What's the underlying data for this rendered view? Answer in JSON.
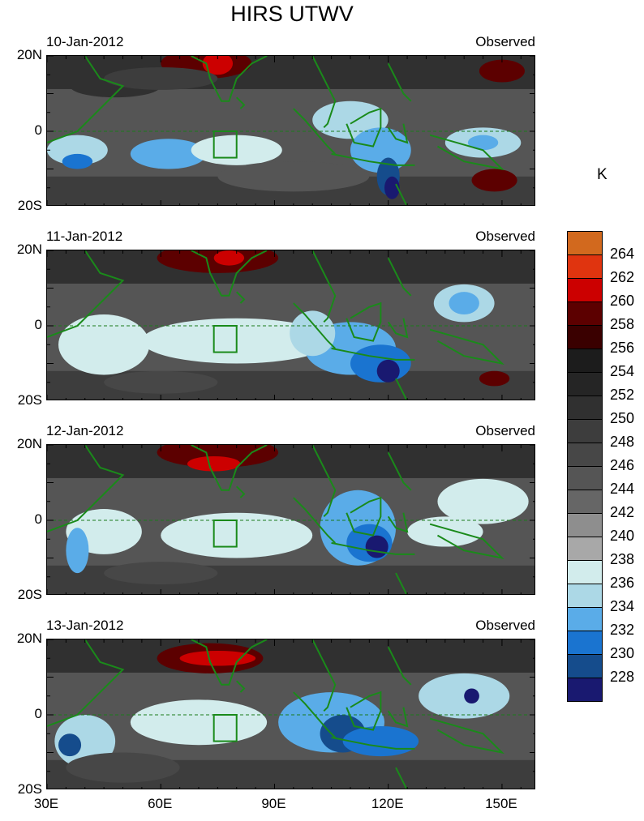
{
  "title": "HIRS UTWV",
  "units": "K",
  "panels": [
    {
      "date": "10-Jan-2012",
      "label": "Observed"
    },
    {
      "date": "11-Jan-2012",
      "label": "Observed"
    },
    {
      "date": "12-Jan-2012",
      "label": "Observed"
    },
    {
      "date": "13-Jan-2012",
      "label": "Observed"
    }
  ],
  "lat_labels": [
    "20N",
    "0",
    "20S"
  ],
  "lon_labels": [
    "30E",
    "60E",
    "90E",
    "120E",
    "150E"
  ],
  "colorbar": {
    "labels": [
      "264",
      "262",
      "260",
      "258",
      "256",
      "254",
      "252",
      "250",
      "248",
      "246",
      "244",
      "242",
      "240",
      "238",
      "236",
      "234",
      "232",
      "230",
      "228"
    ],
    "colors": [
      "#d2691e",
      "#e0340f",
      "#cc0000",
      "#5c0000",
      "#3a0000",
      "#1c1c1c",
      "#252525",
      "#303030",
      "#3d3d3d",
      "#474747",
      "#555555",
      "#666666",
      "#8e8e8e",
      "#a8a8a8",
      "#d2ecec",
      "#acd8e6",
      "#5aace8",
      "#1a74d0",
      "#154c8c",
      "#191970"
    ]
  },
  "chart_data": {
    "type": "heatmap",
    "title": "HIRS UTWV",
    "units": "K",
    "x_range": [
      30,
      160
    ],
    "y_range": [
      -20,
      20
    ],
    "x_ticks": [
      "30E",
      "60E",
      "90E",
      "120E",
      "150E"
    ],
    "y_ticks": [
      "20N",
      "0",
      "20S"
    ],
    "levels": [
      228,
      230,
      232,
      234,
      236,
      238,
      240,
      242,
      244,
      246,
      248,
      250,
      252,
      254,
      256,
      258,
      260,
      262,
      264
    ],
    "panels": [
      "10-Jan-2012",
      "11-Jan-2012",
      "12-Jan-2012",
      "13-Jan-2012"
    ]
  }
}
